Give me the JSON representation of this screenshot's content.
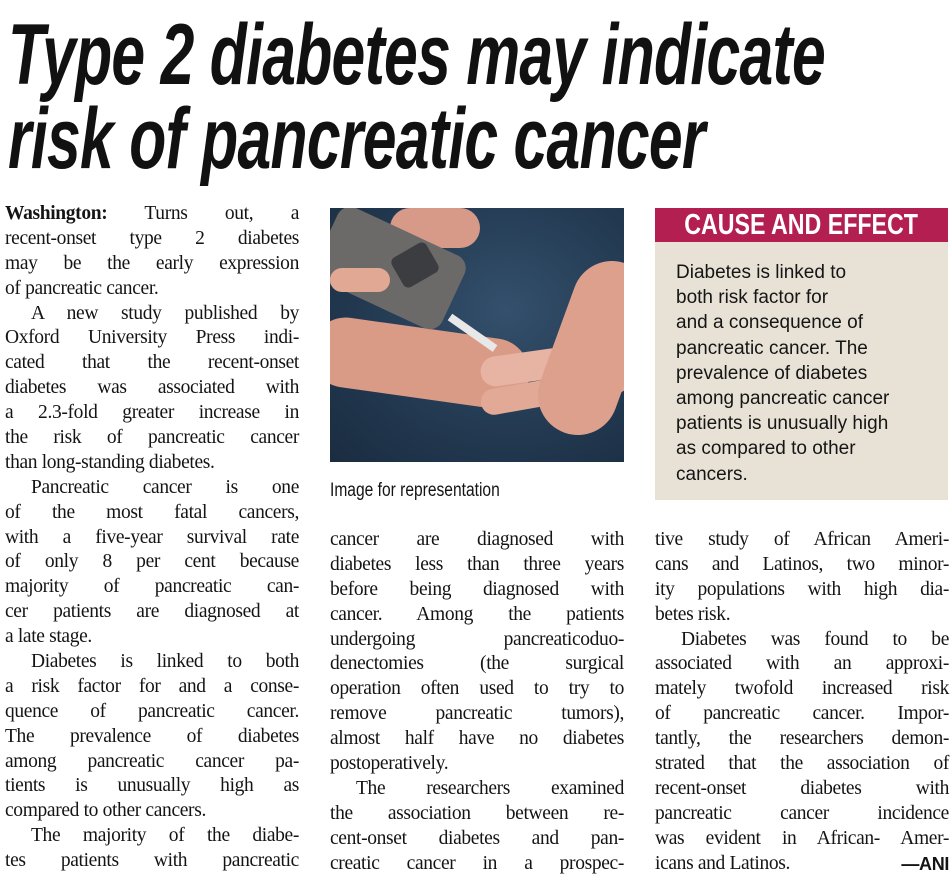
{
  "headline": {
    "line1": "Type 2 diabetes may indicate",
    "line2": "risk of pancreatic cancer"
  },
  "article": {
    "dateline": "Washington:",
    "col1": [
      {
        "t": " Turns out, a",
        "s": "first"
      },
      {
        "t": "recent-onset type 2 diabetes"
      },
      {
        "t": "may be the early expression"
      },
      {
        "t": "of pancreatic cancer.",
        "s": "last"
      },
      {
        "t": "A new study published by",
        "s": "ind"
      },
      {
        "t": "Oxford University Press indi-"
      },
      {
        "t": "cated that the recent-onset"
      },
      {
        "t": "diabetes was associated with"
      },
      {
        "t": "a 2.3-fold greater increase in"
      },
      {
        "t": "the risk of pancreatic cancer"
      },
      {
        "t": "than long-standing diabetes.",
        "s": "last"
      },
      {
        "t": "Pancreatic cancer is one",
        "s": "ind"
      },
      {
        "t": "of the most fatal cancers,"
      },
      {
        "t": "with a five-year survival rate"
      },
      {
        "t": "of only 8 per cent because"
      },
      {
        "t": "majority of pancreatic can-"
      },
      {
        "t": "cer patients are diagnosed at"
      },
      {
        "t": "a late stage.",
        "s": "last"
      },
      {
        "t": "Diabetes is linked to both",
        "s": "ind"
      },
      {
        "t": "a risk factor for and a conse-"
      },
      {
        "t": "quence of pancreatic cancer."
      },
      {
        "t": "The prevalence of diabetes"
      },
      {
        "t": "among pancreatic cancer pa-"
      },
      {
        "t": "tients is unusually high as"
      },
      {
        "t": "compared to other cancers.",
        "s": "last"
      },
      {
        "t": "The majority of the diabe-",
        "s": "ind"
      },
      {
        "t": "tes patients with pancreatic"
      }
    ],
    "col2": [
      {
        "t": "cancer are diagnosed with"
      },
      {
        "t": "diabetes less than three years"
      },
      {
        "t": "before being diagnosed with"
      },
      {
        "t": "cancer. Among the patients"
      },
      {
        "t": "undergoing pancreaticoduo-"
      },
      {
        "t": "denectomies (the surgical"
      },
      {
        "t": "operation often used to try to"
      },
      {
        "t": "remove pancreatic tumors),"
      },
      {
        "t": "almost half have no diabetes"
      },
      {
        "t": "postoperatively.",
        "s": "last"
      },
      {
        "t": "The researchers examined",
        "s": "ind"
      },
      {
        "t": "the association between re-"
      },
      {
        "t": "cent-onset diabetes and pan-"
      },
      {
        "t": "creatic cancer in a prospec-"
      }
    ],
    "col3": [
      {
        "t": "tive study of African Ameri-"
      },
      {
        "t": "cans and Latinos, two minor-"
      },
      {
        "t": "ity populations with high dia-"
      },
      {
        "t": "betes risk.",
        "s": "last"
      },
      {
        "t": "Diabetes was found to be",
        "s": "ind"
      },
      {
        "t": "associated with an approxi-"
      },
      {
        "t": "mately twofold increased risk"
      },
      {
        "t": "of pancreatic cancer. Impor-"
      },
      {
        "t": "tantly, the researchers demon-"
      },
      {
        "t": "strated that the association of"
      },
      {
        "t": "recent-onset diabetes with"
      },
      {
        "t": "pancreatic cancer incidence"
      },
      {
        "t": "was evident in African- Amer-"
      },
      {
        "t": "icans and Latinos.",
        "s": "last"
      }
    ],
    "credit": "—ANI"
  },
  "photo": {
    "caption": "Image for representation"
  },
  "sidebar": {
    "title": "CAUSE AND EFFECT",
    "lines": [
      "Diabetes is linked to",
      "both risk factor for",
      "and a consequence of",
      "pancreatic cancer. The",
      "prevalence of diabetes",
      "among pancreatic cancer",
      "patients is unusually high",
      "as compared to other",
      "cancers."
    ],
    "header_color": "#b31f50",
    "background_color": "#e8e2d6"
  }
}
